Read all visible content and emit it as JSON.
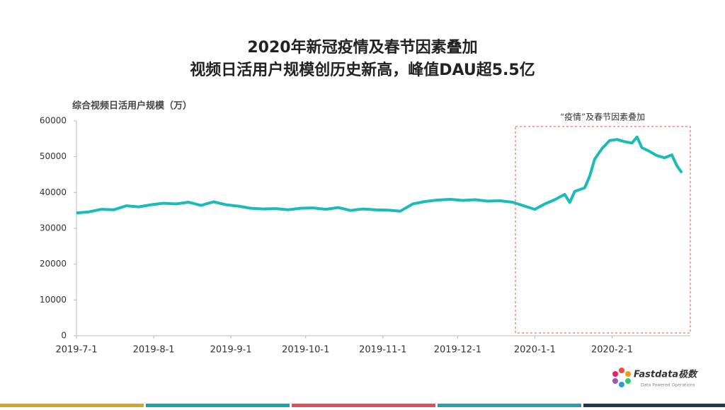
{
  "chart_data": {
    "type": "line",
    "title": "2020年新冠疫情及春节因素叠加",
    "subtitle": "视频日活用户规模创历史新高，峰值DAU超5.5亿",
    "y_label": "综合视频日活用户规模（万）",
    "annotation": "“疫情”及春节因素叠加",
    "x": [
      "2019-7-1",
      "2019-7-6",
      "2019-7-11",
      "2019-7-16",
      "2019-7-21",
      "2019-7-26",
      "2019-7-31",
      "2019-8-5",
      "2019-8-10",
      "2019-8-15",
      "2019-8-20",
      "2019-8-25",
      "2019-8-30",
      "2019-9-4",
      "2019-9-9",
      "2019-9-14",
      "2019-9-19",
      "2019-9-24",
      "2019-9-29",
      "2019-10-4",
      "2019-10-9",
      "2019-10-14",
      "2019-10-19",
      "2019-10-24",
      "2019-10-29",
      "2019-11-3",
      "2019-11-8",
      "2019-11-13",
      "2019-11-18",
      "2019-11-23",
      "2019-11-28",
      "2019-12-3",
      "2019-12-8",
      "2019-12-13",
      "2019-12-18",
      "2019-12-23",
      "2019-12-28",
      "2020-1-1",
      "2020-1-5",
      "2020-1-9",
      "2020-1-13",
      "2020-1-15",
      "2020-1-17",
      "2020-1-21",
      "2020-1-23",
      "2020-1-25",
      "2020-1-28",
      "2020-1-31",
      "2020-2-3",
      "2020-2-6",
      "2020-2-9",
      "2020-2-11",
      "2020-2-13",
      "2020-2-16",
      "2020-2-19",
      "2020-2-22",
      "2020-2-25",
      "2020-2-27",
      "2020-2-29"
    ],
    "series": [
      {
        "name": "综合视频日活用户规模",
        "color": "#1abcb8",
        "values": [
          34300,
          34600,
          35300,
          35200,
          36300,
          36000,
          36600,
          37000,
          36800,
          37300,
          36400,
          37400,
          36600,
          36200,
          35600,
          35400,
          35500,
          35200,
          35600,
          35700,
          35300,
          35800,
          35000,
          35400,
          35200,
          35100,
          34800,
          36800,
          37500,
          37900,
          38100,
          37800,
          38000,
          37600,
          37700,
          37300,
          36200,
          35300,
          36800,
          38000,
          39500,
          37200,
          40300,
          41300,
          44500,
          49300,
          52300,
          54500,
          54800,
          54200,
          53800,
          55500,
          52500,
          51500,
          50300,
          49700,
          50500,
          47500,
          45500
        ]
      }
    ],
    "xlim": [
      "2019-7-1",
      "2020-2-29"
    ],
    "xticks": [
      "2019-7-1",
      "2019-8-1",
      "2019-9-1",
      "2019-10-1",
      "2019-11-1",
      "2019-12-1",
      "2020-1-1",
      "2020-2-1"
    ],
    "ylim": [
      0,
      60000
    ],
    "yticks": [
      0,
      10000,
      20000,
      30000,
      40000,
      50000,
      60000
    ],
    "grid": false
  },
  "logo": {
    "name": "Fastdata极数",
    "tagline": "Data Powered Operations"
  }
}
